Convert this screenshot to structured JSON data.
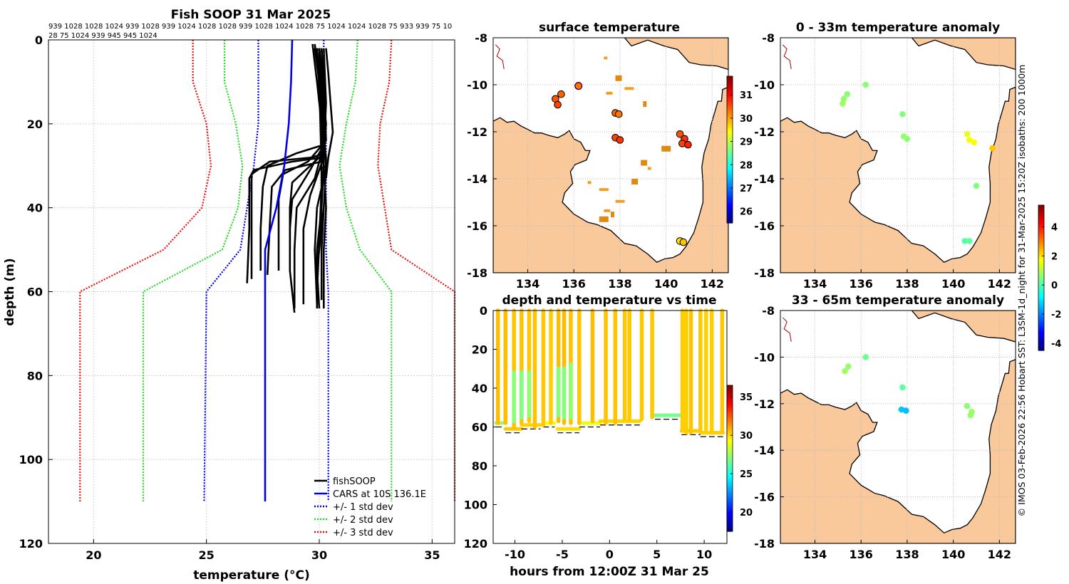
{
  "colors": {
    "land": "#f9c89b",
    "grid": "#d0d0d0",
    "profile": "#000000",
    "cars": "#0000ee",
    "std1": "#0000ee",
    "std2": "#22dd22",
    "std3": "#ee1111"
  },
  "profile_panel": {
    "title": "Fish SOOP 31 Mar 2025",
    "id_line_1": "939 1028 1028 1024 939 1028 939 1024 1028 1028 939 1028 1024 1028 75 1024 1024 1028 75 933 939 75 10",
    "id_line_2": "28 75 1024 939 945 945 1024",
    "xlabel": "temperature (°C)",
    "ylabel": "depth (m)",
    "legend": [
      "fishSOOP",
      "CARS at 10S 136.1E",
      "+/- 1 std dev",
      "+/- 2 std dev",
      "+/- 3 std dev"
    ]
  },
  "map_panels": {
    "surface_title": "surface temperature",
    "anom1_title": "0 - 33m temperature anomaly",
    "anom2_title": "33 - 65m temperature anomaly"
  },
  "time_panel": {
    "title": "depth and temperature vs time",
    "xlabel": "hours from 12:00Z 31 Mar 25"
  },
  "side_note": "© IMOS 03-Feb-2026 22:56 Hobart SST: L3SM-1d_night for 31-Mar-2025 15:20Z isobaths: 200  1000m",
  "chart_data": [
    {
      "type": "line",
      "name": "profile",
      "xlim": [
        18,
        36
      ],
      "ylim": [
        0,
        120
      ],
      "xticks": [
        20,
        25,
        30,
        35
      ],
      "yticks": [
        0,
        20,
        40,
        60,
        80,
        100,
        120
      ],
      "cars": {
        "temp": [
          28.8,
          28.75,
          28.65,
          28.45,
          28.1,
          27.6,
          27.6,
          27.6
        ],
        "depth": [
          0,
          10,
          20,
          30,
          40,
          50,
          60,
          110
        ]
      },
      "std1_left": {
        "temp": [
          27.3,
          27.3,
          27.3,
          27.1,
          26.8,
          26.5,
          25.0,
          24.9
        ],
        "depth": [
          0,
          10,
          20,
          30,
          40,
          50,
          60,
          110
        ]
      },
      "std1_right": {
        "temp": [
          30.2,
          30.2,
          30.3,
          30.3,
          30.3,
          30.3,
          30.4,
          30.4
        ],
        "depth": [
          0,
          10,
          20,
          30,
          40,
          50,
          60,
          110
        ]
      },
      "std2_left": {
        "temp": [
          25.8,
          25.8,
          26.3,
          26.6,
          26.4,
          25.7,
          22.2,
          22.2
        ],
        "depth": [
          0,
          10,
          20,
          30,
          40,
          50,
          60,
          110
        ]
      },
      "std2_right": {
        "temp": [
          31.7,
          31.6,
          31.2,
          30.9,
          31.2,
          31.8,
          33.2,
          33.2
        ],
        "depth": [
          0,
          10,
          20,
          30,
          40,
          50,
          60,
          110
        ]
      },
      "std3_left": {
        "temp": [
          24.4,
          24.4,
          25.0,
          25.2,
          24.8,
          23.1,
          19.4,
          19.4
        ],
        "depth": [
          0,
          10,
          20,
          30,
          40,
          50,
          60,
          110
        ]
      },
      "std3_right": {
        "temp": [
          33.2,
          33.1,
          32.7,
          32.6,
          32.9,
          33.2,
          36.0,
          36.0
        ],
        "depth": [
          0,
          10,
          20,
          30,
          40,
          50,
          60,
          110
        ]
      },
      "fish_profiles": [
        {
          "temp": [
            29.9,
            30.0,
            30.1,
            30.2,
            30.3,
            30.2,
            30.2
          ],
          "depth": [
            2,
            10,
            20,
            30,
            40,
            50,
            64
          ]
        },
        {
          "temp": [
            29.8,
            30.0,
            30.2,
            30.3,
            30.2,
            30.1,
            30.1
          ],
          "depth": [
            2,
            10,
            20,
            30,
            40,
            50,
            62
          ]
        },
        {
          "temp": [
            30.0,
            30.1,
            30.2,
            30.2,
            30.1,
            29.9,
            29.9
          ],
          "depth": [
            3,
            12,
            22,
            30,
            40,
            50,
            64
          ]
        },
        {
          "temp": [
            29.9,
            30.0,
            30.1,
            30.1,
            30.0,
            29.9
          ],
          "depth": [
            2,
            12,
            24,
            35,
            48,
            60
          ]
        },
        {
          "temp": [
            29.7,
            29.9,
            30.1,
            30.2,
            30.3,
            30.3,
            30.0
          ],
          "depth": [
            1,
            10,
            20,
            25,
            28,
            30,
            31
          ]
        },
        {
          "temp": [
            30.3,
            30.4,
            30.5,
            30.6,
            30.4,
            30.3
          ],
          "depth": [
            2,
            8,
            15,
            22,
            28,
            33
          ]
        },
        {
          "temp": [
            29.9,
            30.0,
            30.1,
            30.2,
            29.7,
            27.8,
            27.0,
            27.0,
            27.0
          ],
          "depth": [
            2,
            10,
            20,
            27,
            28,
            29,
            32,
            45,
            57
          ]
        },
        {
          "temp": [
            30.0,
            30.1,
            30.2,
            30.2,
            28.8,
            27.1,
            26.9,
            26.9,
            26.8
          ],
          "depth": [
            2,
            10,
            20,
            28,
            29,
            31,
            33,
            45,
            58
          ]
        },
        {
          "temp": [
            30.1,
            30.2,
            30.2,
            29.0,
            27.7,
            27.5,
            27.4,
            27.4
          ],
          "depth": [
            2,
            10,
            25,
            27,
            30,
            35,
            45,
            55
          ]
        },
        {
          "temp": [
            29.9,
            30.1,
            30.2,
            30.1,
            28.5,
            27.9,
            27.8,
            27.7
          ],
          "depth": [
            3,
            10,
            22,
            29,
            31,
            35,
            45,
            56
          ]
        },
        {
          "temp": [
            30.0,
            30.2,
            30.3,
            29.5,
            28.4,
            28.2,
            28.2
          ],
          "depth": [
            2,
            12,
            24,
            29,
            32,
            38,
            55
          ]
        },
        {
          "temp": [
            30.1,
            30.2,
            30.2,
            29.6,
            28.8,
            28.7,
            28.7,
            28.9
          ],
          "depth": [
            2,
            10,
            25,
            31,
            38,
            45,
            55,
            65
          ]
        },
        {
          "temp": [
            30.0,
            30.1,
            30.2,
            29.8,
            29.0,
            28.9,
            28.9
          ],
          "depth": [
            2,
            10,
            25,
            33,
            40,
            50,
            64
          ]
        },
        {
          "temp": [
            30.2,
            30.3,
            30.2,
            29.6,
            29.3,
            29.3
          ],
          "depth": [
            2,
            15,
            28,
            37,
            45,
            63
          ]
        },
        {
          "temp": [
            30.0,
            30.1,
            30.2,
            30.2,
            29.9,
            29.8,
            29.9
          ],
          "depth": [
            2,
            15,
            25,
            33,
            40,
            50,
            63
          ]
        },
        {
          "temp": [
            29.8,
            30.0,
            30.1,
            30.1,
            29.9,
            30.0
          ],
          "depth": [
            1,
            10,
            30,
            45,
            55,
            64
          ]
        },
        {
          "temp": [
            29.8,
            30.1,
            30.3,
            30.2,
            29.6,
            28.8,
            28.7,
            28.7
          ],
          "depth": [
            2,
            10,
            20,
            27,
            30,
            34,
            40,
            50
          ]
        }
      ]
    },
    {
      "type": "scatter",
      "name": "surface temperature map",
      "xlim": [
        132.5,
        142.7
      ],
      "ylim": [
        -18,
        -8
      ],
      "xticks": [
        134,
        136,
        138,
        140,
        142
      ],
      "yticks": [
        -8,
        -10,
        -12,
        -14,
        -16,
        -18
      ],
      "colorbar": {
        "min": 25.5,
        "max": 31.8,
        "ticks": [
          26,
          27,
          28,
          29,
          30,
          31
        ]
      },
      "points": [
        {
          "lon": 135.2,
          "lat": -10.6,
          "value": 30.5
        },
        {
          "lon": 135.45,
          "lat": -10.4,
          "value": 30.4
        },
        {
          "lon": 135.3,
          "lat": -10.85,
          "value": 30.6
        },
        {
          "lon": 136.2,
          "lat": -10.05,
          "value": 30.3
        },
        {
          "lon": 137.8,
          "lat": -11.2,
          "value": 30.4
        },
        {
          "lon": 137.95,
          "lat": -11.25,
          "value": 30.3
        },
        {
          "lon": 137.8,
          "lat": -12.25,
          "value": 30.6
        },
        {
          "lon": 138.0,
          "lat": -12.35,
          "value": 30.7
        },
        {
          "lon": 140.6,
          "lat": -12.1,
          "value": 30.5
        },
        {
          "lon": 140.8,
          "lat": -12.3,
          "value": 30.7
        },
        {
          "lon": 140.7,
          "lat": -12.5,
          "value": 30.6
        },
        {
          "lon": 140.95,
          "lat": -12.55,
          "value": 30.8
        },
        {
          "lon": 140.6,
          "lat": -16.65,
          "value": 29.6
        },
        {
          "lon": 140.75,
          "lat": -16.7,
          "value": 29.8
        }
      ]
    },
    {
      "type": "scatter",
      "name": "0 - 33m temperature anomaly map",
      "xlim": [
        132.5,
        142.7
      ],
      "ylim": [
        -18,
        -8
      ],
      "xticks": [
        134,
        136,
        138,
        140,
        142
      ],
      "yticks": [
        -8,
        -10,
        -12,
        -14,
        -16,
        -18
      ],
      "colorbar": {
        "min": -4.5,
        "max": 5.5,
        "ticks": [
          -4,
          -2,
          0,
          2,
          4
        ]
      },
      "points": [
        {
          "lon": 135.25,
          "lat": -10.6,
          "value": 0.7
        },
        {
          "lon": 135.4,
          "lat": -10.4,
          "value": 0.6
        },
        {
          "lon": 135.2,
          "lat": -10.8,
          "value": 0.8
        },
        {
          "lon": 136.2,
          "lat": -10.0,
          "value": 0.6
        },
        {
          "lon": 137.8,
          "lat": -11.25,
          "value": 0.5
        },
        {
          "lon": 137.85,
          "lat": -12.2,
          "value": 0.7
        },
        {
          "lon": 138.0,
          "lat": -12.3,
          "value": 0.6
        },
        {
          "lon": 140.6,
          "lat": -12.1,
          "value": 1.5
        },
        {
          "lon": 140.7,
          "lat": -12.35,
          "value": 1.8
        },
        {
          "lon": 140.9,
          "lat": -12.45,
          "value": 1.7
        },
        {
          "lon": 141.7,
          "lat": -12.7,
          "value": 2.3
        },
        {
          "lon": 141.0,
          "lat": -14.3,
          "value": 0.5
        },
        {
          "lon": 140.5,
          "lat": -16.65,
          "value": 0.1
        },
        {
          "lon": 140.7,
          "lat": -16.65,
          "value": 0.2
        }
      ]
    },
    {
      "type": "scatter",
      "name": "33 - 65m temperature anomaly map",
      "xlim": [
        132.5,
        142.7
      ],
      "ylim": [
        -18,
        -8
      ],
      "xticks": [
        134,
        136,
        138,
        140,
        142
      ],
      "yticks": [
        -8,
        -10,
        -12,
        -14,
        -16,
        -18
      ],
      "colorbar": {
        "min": -4.5,
        "max": 5.5,
        "ticks": [
          -4,
          -2,
          0,
          2,
          4
        ]
      },
      "points": [
        {
          "lon": 135.3,
          "lat": -10.6,
          "value": 0.8
        },
        {
          "lon": 135.45,
          "lat": -10.4,
          "value": 0.7
        },
        {
          "lon": 136.2,
          "lat": -10.0,
          "value": 0.3
        },
        {
          "lon": 137.8,
          "lat": -11.3,
          "value": 0.2
        },
        {
          "lon": 137.75,
          "lat": -12.25,
          "value": -1.3
        },
        {
          "lon": 137.95,
          "lat": -12.3,
          "value": -1.4
        },
        {
          "lon": 140.6,
          "lat": -12.1,
          "value": 0.6
        },
        {
          "lon": 140.8,
          "lat": -12.35,
          "value": 0.8
        },
        {
          "lon": 140.75,
          "lat": -12.5,
          "value": 0.7
        }
      ]
    },
    {
      "type": "scatter",
      "name": "depth and temperature vs time",
      "xlim": [
        -12.3,
        12.4
      ],
      "ylim": [
        0,
        120
      ],
      "xticks": [
        -10,
        -5,
        0,
        5,
        10
      ],
      "yticks": [
        0,
        20,
        40,
        60,
        80,
        100,
        120
      ],
      "colorbar": {
        "min": 17.5,
        "max": 36.5,
        "ticks": [
          20,
          25,
          30,
          35
        ]
      },
      "segments": [
        {
          "t0": -12.0,
          "t1": -11.3,
          "depth": 58,
          "temp": 27.3
        },
        {
          "t0": -11.0,
          "t1": -9.3,
          "depth": 61,
          "temp": 30.4
        },
        {
          "t0": -9.3,
          "t1": -7.3,
          "depth": 59,
          "temp": 30.2
        },
        {
          "t0": -7.0,
          "t1": -5.8,
          "depth": 58,
          "temp": 29.3
        },
        {
          "t0": -5.5,
          "t1": -3.2,
          "depth": 61,
          "temp": 30.0
        },
        {
          "t0": -3.2,
          "t1": -1.0,
          "depth": 58,
          "temp": 29.0
        },
        {
          "t0": -1.0,
          "t1": 3.2,
          "depth": 57,
          "temp": 30.2
        },
        {
          "t0": 4.8,
          "t1": 7.6,
          "depth": 54,
          "temp": 26.8
        },
        {
          "t0": 7.6,
          "t1": 9.6,
          "depth": 62,
          "temp": 30.4
        },
        {
          "t0": 9.6,
          "t1": 12.0,
          "depth": 63,
          "temp": 30.3
        }
      ],
      "casts": [
        {
          "t": -11.8,
          "temp": 30.6,
          "bottom": 58,
          "layer_top": 0,
          "layer_temp": 0
        },
        {
          "t": -11.0,
          "temp": 30.6,
          "bottom": 58,
          "layer_top": 0,
          "layer_temp": 0
        },
        {
          "t": -10.1,
          "temp": 30.5,
          "bottom": 60,
          "layer_top": 31,
          "layer_temp": 27.2
        },
        {
          "t": -9.3,
          "temp": 30.5,
          "bottom": 58,
          "layer_top": 31,
          "layer_temp": 27.0
        },
        {
          "t": -8.5,
          "temp": 30.4,
          "bottom": 57,
          "layer_top": 31,
          "layer_temp": 27.3
        },
        {
          "t": -7.9,
          "temp": 30.5,
          "bottom": 60,
          "layer_top": 0,
          "layer_temp": 0
        },
        {
          "t": -7.0,
          "temp": 30.4,
          "bottom": 59,
          "layer_top": 0,
          "layer_temp": 0
        },
        {
          "t": -6.2,
          "temp": 30.3,
          "bottom": 58,
          "layer_top": 0,
          "layer_temp": 0
        },
        {
          "t": -5.4,
          "temp": 30.6,
          "bottom": 57,
          "layer_top": 29,
          "layer_temp": 27.1
        },
        {
          "t": -4.8,
          "temp": 30.6,
          "bottom": 58,
          "layer_top": 29,
          "layer_temp": 27.0
        },
        {
          "t": -4.1,
          "temp": 30.5,
          "bottom": 58,
          "layer_top": 27,
          "layer_temp": 27.3
        },
        {
          "t": -3.2,
          "temp": 30.5,
          "bottom": 58,
          "layer_top": 0,
          "layer_temp": 0
        },
        {
          "t": -1.8,
          "temp": 30.6,
          "bottom": 57,
          "layer_top": 0,
          "layer_temp": 0
        },
        {
          "t": -0.4,
          "temp": 30.5,
          "bottom": 58,
          "layer_top": 0,
          "layer_temp": 0
        },
        {
          "t": 0.6,
          "temp": 30.5,
          "bottom": 58,
          "layer_top": 0,
          "layer_temp": 0
        },
        {
          "t": 1.6,
          "temp": 30.4,
          "bottom": 56,
          "layer_top": 0,
          "layer_temp": 0
        },
        {
          "t": 2.1,
          "temp": 30.4,
          "bottom": 56,
          "layer_top": 0,
          "layer_temp": 0
        },
        {
          "t": 3.4,
          "temp": 30.4,
          "bottom": 56,
          "layer_top": 0,
          "layer_temp": 0
        },
        {
          "t": 4.5,
          "temp": 30.4,
          "bottom": 55,
          "layer_top": 0,
          "layer_temp": 0
        },
        {
          "t": 7.7,
          "temp": 30.3,
          "bottom": 62,
          "layer_top": 0,
          "layer_temp": 0
        },
        {
          "t": 8.1,
          "temp": 30.3,
          "bottom": 63,
          "layer_top": 0,
          "layer_temp": 0
        },
        {
          "t": 8.6,
          "temp": 30.5,
          "bottom": 63,
          "layer_top": 0,
          "layer_temp": 0
        },
        {
          "t": 9.6,
          "temp": 30.4,
          "bottom": 62,
          "layer_top": 0,
          "layer_temp": 0
        },
        {
          "t": 10.2,
          "temp": 30.2,
          "bottom": 63,
          "layer_top": 0,
          "layer_temp": 0
        },
        {
          "t": 10.8,
          "temp": 30.3,
          "bottom": 63,
          "layer_top": 0,
          "layer_temp": 0
        },
        {
          "t": 11.9,
          "temp": 30.4,
          "bottom": 62,
          "layer_top": 0,
          "layer_temp": 0
        }
      ]
    }
  ]
}
